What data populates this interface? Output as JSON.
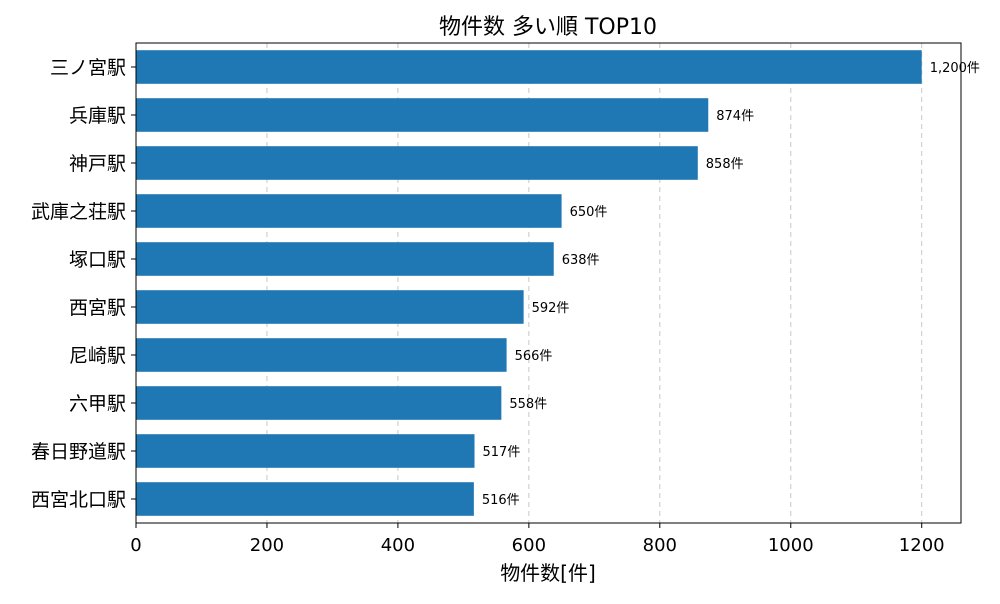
{
  "chart_data": {
    "type": "bar",
    "orientation": "horizontal",
    "title": "物件数 多い順 TOP10",
    "xlabel": "物件数[件]",
    "ylabel": "",
    "categories": [
      "三ノ宮駅",
      "兵庫駅",
      "神戸駅",
      "武庫之荘駅",
      "塚口駅",
      "西宮駅",
      "尼崎駅",
      "六甲駅",
      "春日野道駅",
      "西宮北口駅"
    ],
    "values": [
      1200,
      874,
      858,
      650,
      638,
      592,
      566,
      558,
      517,
      516
    ],
    "data_labels": [
      "1,200件",
      "874件",
      "858件",
      "650件",
      "638件",
      "592件",
      "566件",
      "558件",
      "517件",
      "516件"
    ],
    "xlim": [
      0,
      1260
    ],
    "xticks": [
      0,
      200,
      400,
      600,
      800,
      1000,
      1200
    ],
    "grid": "x-dashed",
    "bar_color": "#1f77b4"
  }
}
